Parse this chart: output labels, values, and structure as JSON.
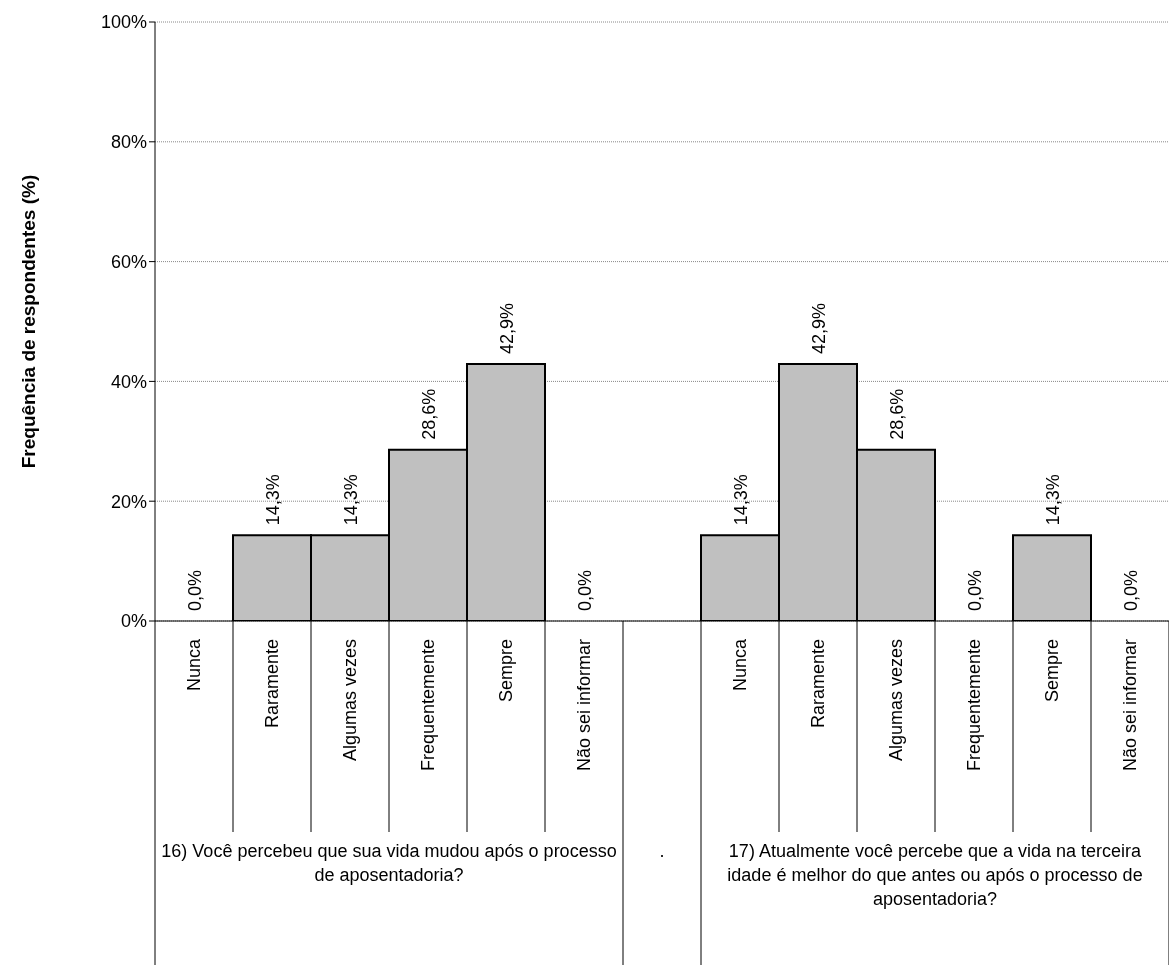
{
  "chart_data": {
    "type": "bar",
    "ylabel": "Frequência de respondentes (%)",
    "categories": [
      "Nunca",
      "Raramente",
      "Algumas vezes",
      "Frequentemente",
      "Sempre",
      "Não sei informar",
      null,
      "Nunca",
      "Raramente",
      "Algumas vezes",
      "Frequentemente",
      "Sempre",
      "Não sei informar"
    ],
    "values": [
      0,
      14.3,
      14.3,
      28.6,
      42.9,
      0,
      null,
      14.3,
      42.9,
      28.6,
      0,
      14.3,
      0
    ],
    "value_labels": [
      "0,0%",
      "14,3%",
      "14,3%",
      "28,6%",
      "42,9%",
      "0,0%",
      null,
      "14,3%",
      "42,9%",
      "28,6%",
      "0,0%",
      "14,3%",
      "0,0%"
    ],
    "color": "#c0c0c0",
    "ylim": [
      0,
      100
    ],
    "yticks": [
      {
        "value": 0,
        "label": "0%"
      },
      {
        "value": 20,
        "label": "20%"
      },
      {
        "value": 40,
        "label": "40%"
      },
      {
        "value": 60,
        "label": "60%"
      },
      {
        "value": 80,
        "label": "80%"
      },
      {
        "value": 100,
        "label": "100%"
      }
    ],
    "grid": "y",
    "annotations": [
      "16) Você percebeu que sua vida mudou após o processo de aposentadoria?",
      ".",
      "17) Atualmente você percebe que a vida na terceira idade é melhor do que antes ou após o processo de aposentadoria?"
    ]
  }
}
